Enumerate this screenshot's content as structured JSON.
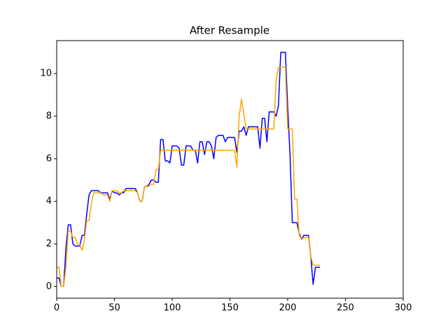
{
  "chart_data": {
    "type": "line",
    "title": "After Resample",
    "x": [
      0,
      2,
      4,
      6,
      8,
      10,
      12,
      14,
      16,
      18,
      20,
      22,
      24,
      26,
      28,
      30,
      32,
      34,
      36,
      38,
      40,
      42,
      44,
      46,
      48,
      50,
      52,
      54,
      56,
      58,
      60,
      62,
      64,
      66,
      68,
      70,
      72,
      74,
      76,
      78,
      80,
      82,
      84,
      86,
      88,
      90,
      92,
      94,
      96,
      98,
      100,
      102,
      104,
      106,
      108,
      110,
      112,
      114,
      116,
      118,
      120,
      122,
      124,
      126,
      128,
      130,
      132,
      134,
      136,
      138,
      140,
      142,
      144,
      146,
      148,
      150,
      152,
      154,
      156,
      158,
      160,
      162,
      164,
      166,
      168,
      170,
      172,
      174,
      176,
      178,
      180,
      182,
      184,
      186,
      188,
      190,
      192,
      194,
      196,
      198,
      200,
      202,
      204,
      206,
      208,
      210,
      212,
      214,
      216,
      218,
      220,
      222,
      224,
      226,
      228
    ],
    "series": [
      {
        "color": "#0000ff",
        "values": [
          0.4,
          0.4,
          0,
          0,
          1.8,
          2.9,
          2.9,
          2.0,
          1.9,
          1.9,
          1.9,
          2.4,
          2.4,
          3.4,
          4.3,
          4.5,
          4.5,
          4.5,
          4.5,
          4.4,
          4.4,
          4.4,
          4.4,
          4.1,
          4.5,
          4.4,
          4.4,
          4.3,
          4.4,
          4.4,
          4.6,
          4.6,
          4.6,
          4.6,
          4.6,
          4.4,
          4.0,
          4.0,
          4.7,
          4.7,
          4.8,
          5.0,
          5.0,
          4.9,
          4.9,
          6.9,
          6.9,
          5.9,
          5.9,
          5.8,
          6.6,
          6.6,
          6.6,
          6.5,
          5.7,
          5.7,
          6.6,
          6.6,
          6.6,
          6.4,
          6.4,
          5.8,
          6.8,
          6.8,
          6.2,
          6.8,
          6.8,
          6.6,
          6.0,
          7.0,
          7.1,
          7.1,
          7.1,
          6.8,
          7.0,
          7.0,
          7.0,
          7.0,
          6.3,
          7.3,
          7.3,
          7.5,
          7.1,
          7.5,
          7.5,
          7.5,
          7.5,
          7.5,
          6.5,
          7.9,
          7.9,
          6.8,
          8.2,
          8.2,
          8.2,
          8.0,
          8.5,
          11,
          11,
          11,
          8.4,
          6.2,
          3.0,
          3.0,
          3.0,
          2.5,
          2.2,
          2.4,
          2.4,
          2.4,
          1.4,
          0.1,
          0.9,
          0.9,
          0.9
        ]
      },
      {
        "color": "#ffa500",
        "values": [
          0.9,
          0.9,
          0,
          0,
          0.9,
          2.6,
          2.6,
          2.3,
          2.3,
          2.0,
          2.0,
          1.7,
          2.2,
          3.1,
          3.1,
          3.9,
          4.4,
          4.4,
          4.4,
          4.4,
          4.3,
          4.3,
          4.3,
          4.0,
          4.5,
          4.5,
          4.5,
          4.4,
          4.4,
          4.5,
          4.5,
          4.5,
          4.5,
          4.5,
          4.5,
          4.4,
          4.0,
          4.0,
          4.7,
          4.7,
          4.7,
          4.8,
          4.8,
          5.5,
          5.5,
          6.4,
          6.4,
          6.4,
          6.4,
          6.4,
          6.4,
          6.4,
          6.4,
          6.4,
          6.4,
          6.4,
          6.4,
          6.4,
          6.4,
          6.4,
          6.4,
          6.4,
          6.4,
          6.4,
          6.4,
          6.4,
          6.4,
          6.4,
          6.4,
          6.4,
          6.4,
          6.4,
          6.4,
          6.4,
          6.4,
          6.4,
          6.4,
          6.4,
          5.6,
          8.0,
          8.8,
          8.1,
          7.4,
          7.4,
          7.4,
          7.4,
          7.4,
          7.4,
          7.4,
          7.4,
          7.4,
          7.4,
          7.4,
          7.4,
          7.4,
          9.7,
          10.3,
          10.3,
          10.3,
          10.3,
          7.4,
          7.4,
          7.4,
          4.1,
          4.1,
          2.4,
          2.2,
          2.3,
          2.3,
          2.3,
          1.4,
          1.0,
          1.0,
          1.0,
          1.0
        ]
      }
    ],
    "xlim": [
      0,
      300
    ],
    "xticks": [
      0,
      50,
      100,
      150,
      200,
      250,
      300
    ],
    "ylim": [
      -0.55,
      11.55
    ],
    "yticks": [
      0,
      2,
      4,
      6,
      8,
      10
    ]
  }
}
